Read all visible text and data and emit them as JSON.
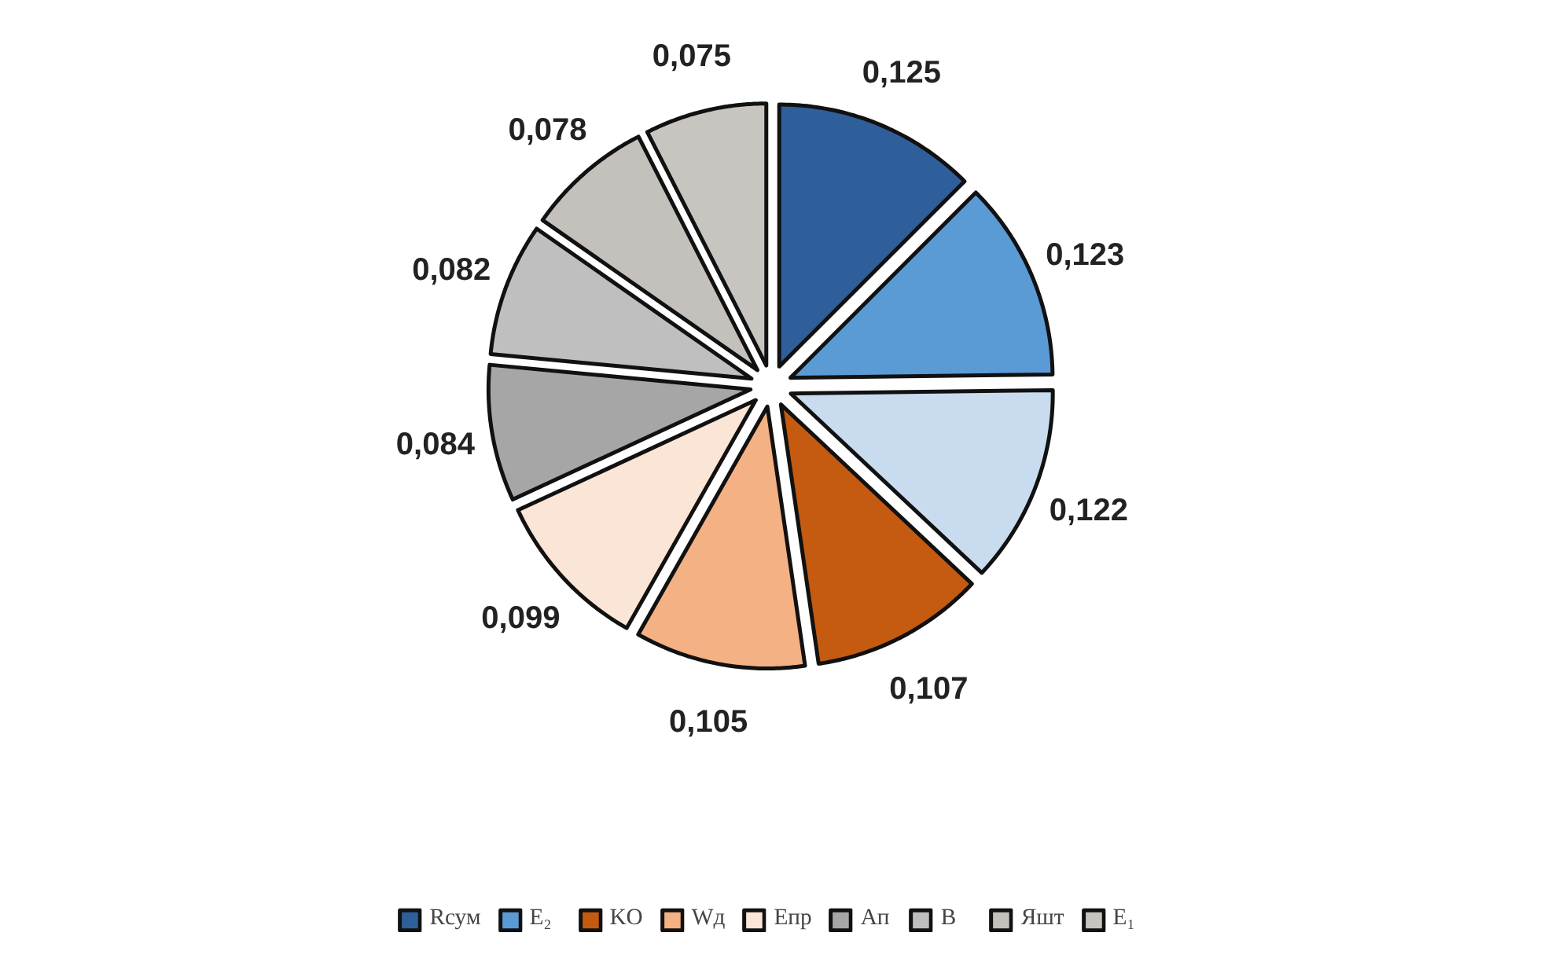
{
  "chart_data": {
    "type": "pie",
    "categories": [
      "Rсум",
      "E₂",
      null,
      "KO",
      "Wд",
      "Eпр",
      "Aп",
      "B",
      "Яшт",
      "E₁"
    ],
    "values": [
      0.125,
      0.123,
      0.122,
      0.107,
      0.105,
      0.099,
      0.084,
      0.082,
      0.078,
      0.075
    ],
    "value_labels": [
      "0,125",
      "0,123",
      "0,122",
      "0,107",
      "0,105",
      "0,099",
      "0,084",
      "0,082",
      "0,078",
      "0,075"
    ],
    "colors": [
      "#2f5f9a",
      "#5b9bd5",
      "#c9dcef",
      "#c55a11",
      "#f4b183",
      "#fbe5d6",
      "#a6a6a6",
      "#bfbfbf",
      "#c4c0bc",
      "#c8c4c0"
    ],
    "legend": "bottom"
  }
}
